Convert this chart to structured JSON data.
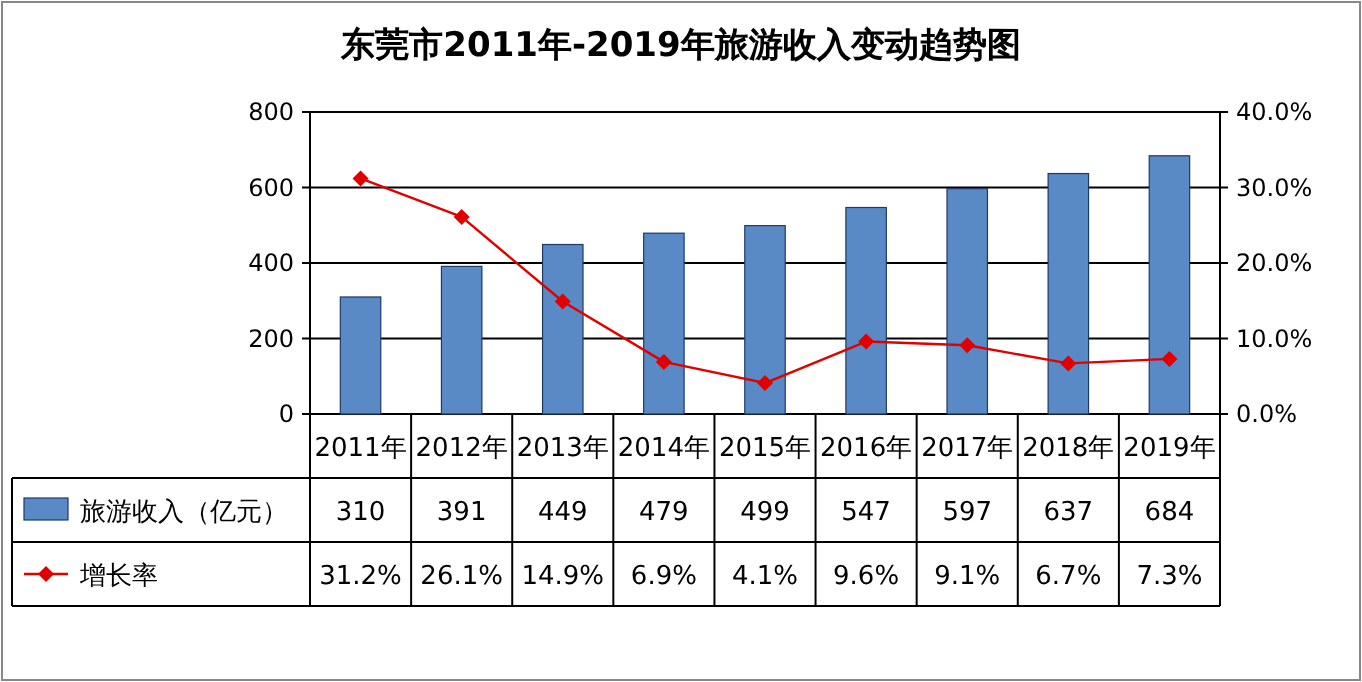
{
  "chart_data": {
    "type": "bar",
    "title": "东莞市2011年-2019年旅游收入变动趋势图",
    "categories": [
      "2011年",
      "2012年",
      "2013年",
      "2014年",
      "2015年",
      "2016年",
      "2017年",
      "2018年",
      "2019年"
    ],
    "series": [
      {
        "name": "旅游收入（亿元）",
        "color": "#5a8ac6",
        "values": [
          310,
          391,
          449,
          479,
          499,
          547,
          597,
          637,
          684
        ],
        "value_labels": [
          "310",
          "391",
          "449",
          "479",
          "499",
          "547",
          "597",
          "637",
          "684"
        ]
      },
      {
        "name": "增长率",
        "type": "line",
        "axis": "y2",
        "color": "#e00000",
        "marker": "diamond",
        "line_style": "solid",
        "values": [
          31.2,
          26.1,
          14.9,
          6.9,
          4.1,
          9.6,
          9.1,
          6.7,
          7.3
        ],
        "value_labels": [
          "31.2%",
          "26.1%",
          "14.9%",
          "6.9%",
          "4.1%",
          "9.6%",
          "9.1%",
          "6.7%",
          "7.3%"
        ]
      }
    ],
    "ylim": [
      0,
      800
    ],
    "yticks": [
      0,
      200,
      400,
      600,
      800
    ],
    "y2lim": [
      0,
      40
    ],
    "y2ticks": [
      {
        "value": 0,
        "label": "0.0%"
      },
      {
        "value": 10,
        "label": "10.0%"
      },
      {
        "value": 20,
        "label": "20.0%"
      },
      {
        "value": 30,
        "label": "30.0%"
      },
      {
        "value": 40,
        "label": "40.0%"
      }
    ],
    "grid": "y",
    "legend": "bottom"
  }
}
